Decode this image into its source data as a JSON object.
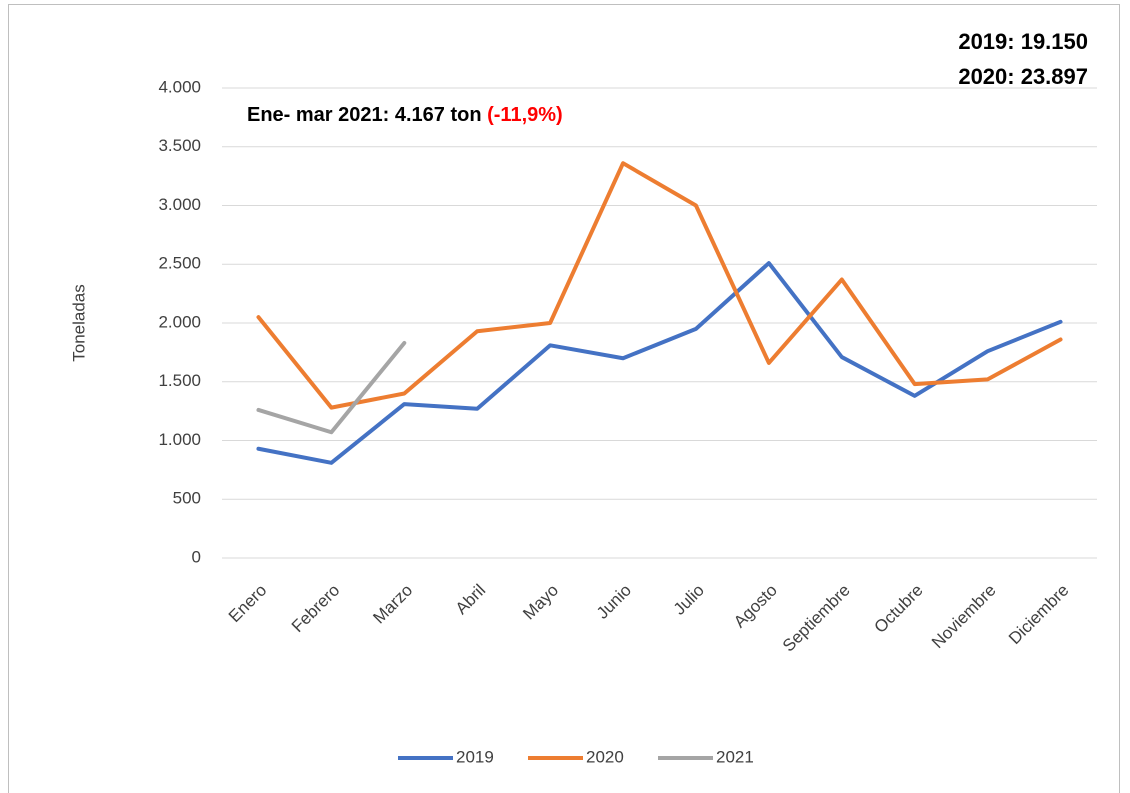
{
  "chart_data": {
    "type": "line",
    "y_label": "Toneladas",
    "annotations": [
      "2019: 19.150",
      "2020: 23.897"
    ],
    "note": "Ene- mar 2021: 4.167 ton ",
    "note_highlight": "(-11,9%)",
    "categories": [
      "Enero",
      "Febrero",
      "Marzo",
      "Abril",
      "Mayo",
      "Junio",
      "Julio",
      "Agosto",
      "Septiembre",
      "Octubre",
      "Noviembre",
      "Diciembre"
    ],
    "series": [
      {
        "name": "2019",
        "color": "#4472c4",
        "values": [
          930,
          810,
          1310,
          1270,
          1810,
          1700,
          1950,
          2510,
          1710,
          1380,
          1760,
          2010
        ]
      },
      {
        "name": "2020",
        "color": "#ed7d31",
        "values": [
          2050,
          1280,
          1400,
          1930,
          2000,
          3360,
          3000,
          1660,
          2370,
          1480,
          1520,
          1860
        ]
      },
      {
        "name": "2021",
        "color": "#a5a5a5",
        "values": [
          1260,
          1070,
          1830,
          null,
          null,
          null,
          null,
          null,
          null,
          null,
          null,
          null
        ]
      }
    ],
    "ylim": [
      0,
      4000
    ],
    "yticks": [
      0,
      500,
      {
        "value": 1000,
        "label": "1.000"
      },
      {
        "value": 1500,
        "label": "1.500"
      },
      {
        "value": 2000,
        "label": "2.000"
      },
      {
        "value": 2500,
        "label": "2.500"
      },
      {
        "value": 3000,
        "label": "3.000"
      },
      {
        "value": 3500,
        "label": "3.500"
      },
      {
        "value": 4000,
        "label": "4.000"
      }
    ],
    "grid": true,
    "legend": "bottom"
  }
}
